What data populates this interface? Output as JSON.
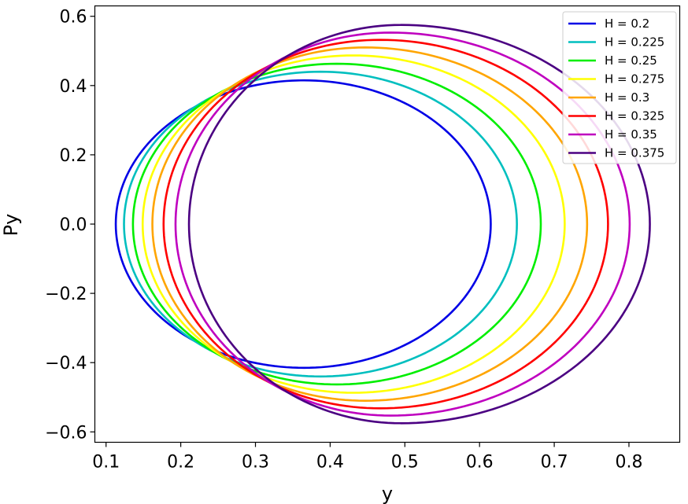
{
  "chart_data": {
    "type": "line",
    "title": "",
    "xlabel": "y",
    "ylabel": "Py",
    "xlim": [
      0.085,
      0.868
    ],
    "ylim": [
      -0.63,
      0.63
    ],
    "xticks": [
      0.1,
      0.2,
      0.3,
      0.4,
      0.5,
      0.6,
      0.7,
      0.8
    ],
    "xtick_labels": [
      "0.1",
      "0.2",
      "0.3",
      "0.4",
      "0.5",
      "0.6",
      "0.7",
      "0.8"
    ],
    "yticks": [
      0.6,
      0.4,
      0.2,
      0.0,
      -0.2,
      -0.4,
      -0.6
    ],
    "ytick_labels": [
      "0.6",
      "0.4",
      "0.2",
      "0.0",
      "−0.2",
      "−0.4",
      "−0.6"
    ],
    "grid": false,
    "legend_position": "top-right",
    "series_shape": "closed curve; x_min, x_max = extremes in y, x_at_py_extreme = y where Py reaches +/- py_max",
    "series": [
      {
        "name": "H = 0.2",
        "color": "#0000e6",
        "x_min": 0.113,
        "x_max": 0.615,
        "x_at_py_extreme": 0.365,
        "py_max": 0.415
      },
      {
        "name": "H = 0.225",
        "color": "#00bfbf",
        "x_min": 0.124,
        "x_max": 0.65,
        "x_at_py_extreme": 0.387,
        "py_max": 0.44
      },
      {
        "name": "H = 0.25",
        "color": "#00ee00",
        "x_min": 0.136,
        "x_max": 0.682,
        "x_at_py_extreme": 0.409,
        "py_max": 0.463
      },
      {
        "name": "H = 0.275",
        "color": "#ffff00",
        "x_min": 0.149,
        "x_max": 0.714,
        "x_at_py_extreme": 0.431,
        "py_max": 0.487
      },
      {
        "name": "H = 0.3",
        "color": "#ffa500",
        "x_min": 0.162,
        "x_max": 0.744,
        "x_at_py_extreme": 0.447,
        "py_max": 0.51
      },
      {
        "name": "H = 0.325",
        "color": "#ff0000",
        "x_min": 0.177,
        "x_max": 0.772,
        "x_at_py_extreme": 0.467,
        "py_max": 0.532
      },
      {
        "name": "H = 0.35",
        "color": "#bf00bf",
        "x_min": 0.193,
        "x_max": 0.801,
        "x_at_py_extreme": 0.481,
        "py_max": 0.553
      },
      {
        "name": "H = 0.375",
        "color": "#4b0082",
        "x_min": 0.211,
        "x_max": 0.828,
        "x_at_py_extreme": 0.495,
        "py_max": 0.575
      }
    ]
  }
}
